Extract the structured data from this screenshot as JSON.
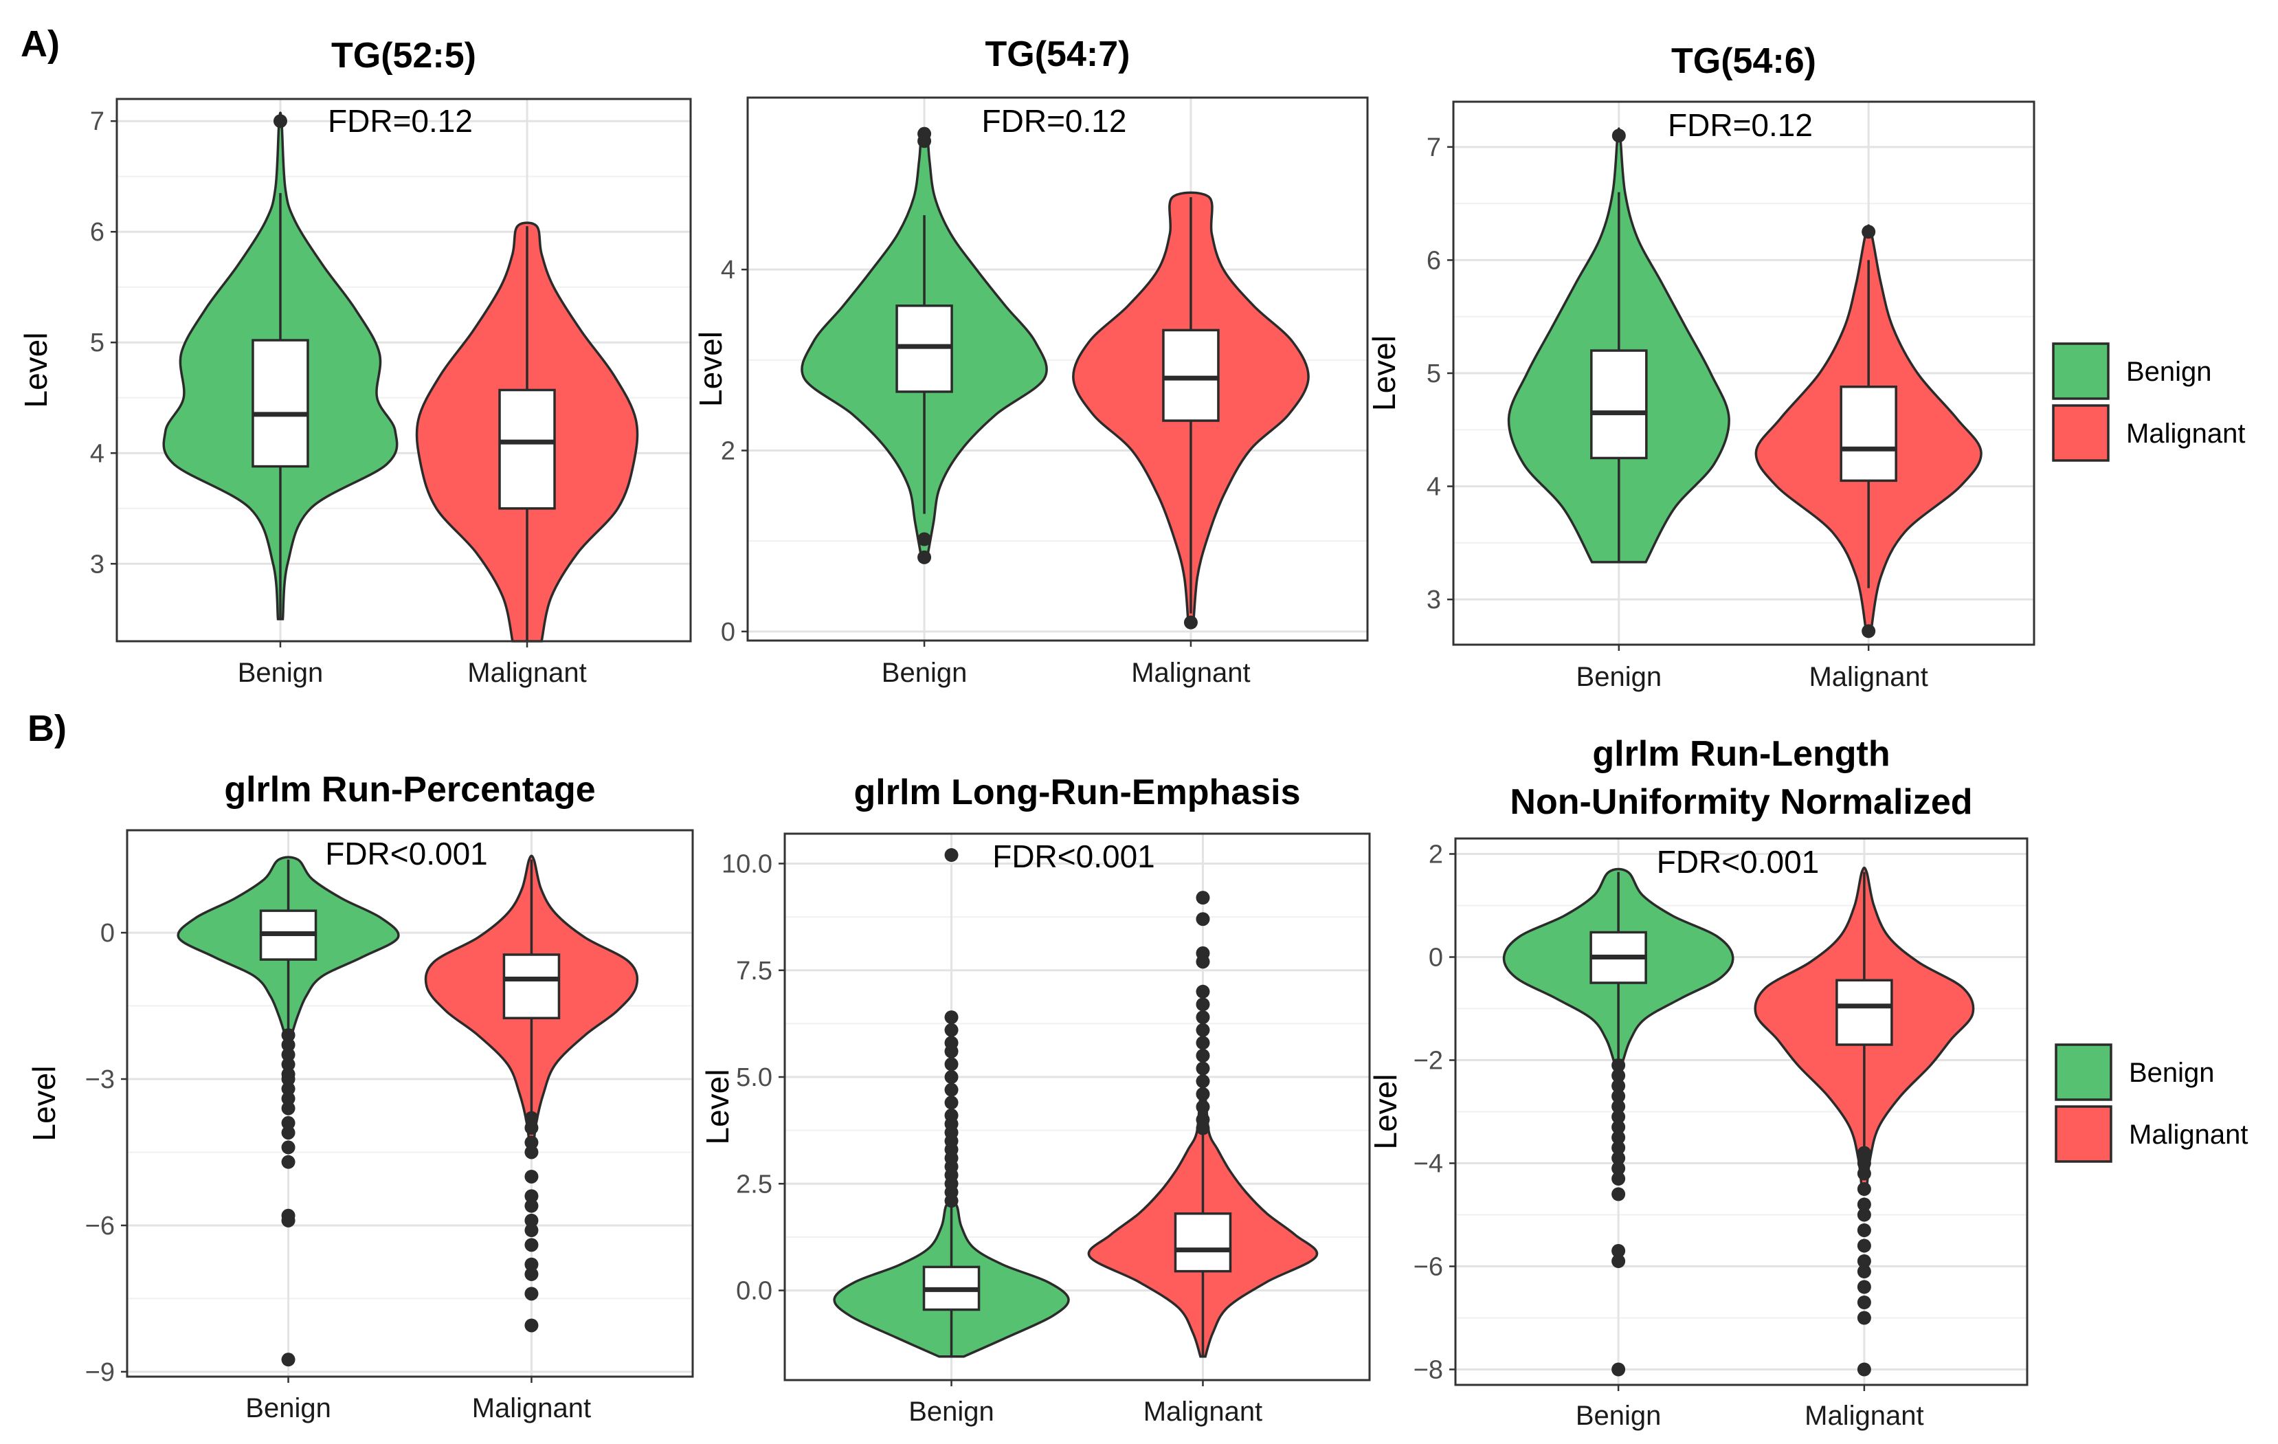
{
  "panel_labels": [
    "A)",
    "B)"
  ],
  "legend": {
    "entries": [
      {
        "label": "Benign",
        "color": "#56C271"
      },
      {
        "label": "Malignant",
        "color": "#FF5C5C"
      }
    ]
  },
  "chart_data": [
    {
      "type": "violin",
      "title": [
        "TG(52:5)"
      ],
      "ylabel": "Level",
      "annotation": "FDR=0.12",
      "ylim": [
        2.3,
        7.2
      ],
      "yticks": [
        3,
        4,
        5,
        6,
        7
      ],
      "ytick_labels": [
        "3",
        "4",
        "5",
        "6",
        "7"
      ],
      "categories": [
        "Benign",
        "Malignant"
      ],
      "series": [
        {
          "name": "Benign",
          "color": "#56C271",
          "min": 2.5,
          "max": 7.0,
          "q1": 3.88,
          "median": 4.35,
          "q3": 5.02,
          "whisker_low": 2.5,
          "whisker_high": 6.35,
          "outliers": [
            7.0
          ],
          "density": [
            [
              2.5,
              0.02
            ],
            [
              3.0,
              0.06
            ],
            [
              3.5,
              0.25
            ],
            [
              3.9,
              0.88
            ],
            [
              4.2,
              0.95
            ],
            [
              4.5,
              0.8
            ],
            [
              4.9,
              0.82
            ],
            [
              5.3,
              0.62
            ],
            [
              5.7,
              0.35
            ],
            [
              6.1,
              0.12
            ],
            [
              6.4,
              0.04
            ],
            [
              7.0,
              0.01
            ]
          ]
        },
        {
          "name": "Malignant",
          "color": "#FF5C5C",
          "min": 2.3,
          "max": 6.05,
          "q1": 3.5,
          "median": 4.1,
          "q3": 4.57,
          "whisker_low": 2.3,
          "whisker_high": 6.05,
          "outliers": [],
          "density": [
            [
              2.3,
              0.12
            ],
            [
              2.7,
              0.2
            ],
            [
              3.1,
              0.42
            ],
            [
              3.5,
              0.75
            ],
            [
              3.9,
              0.88
            ],
            [
              4.3,
              0.9
            ],
            [
              4.7,
              0.72
            ],
            [
              5.1,
              0.45
            ],
            [
              5.5,
              0.22
            ],
            [
              5.8,
              0.12
            ],
            [
              6.05,
              0.08
            ]
          ]
        }
      ]
    },
    {
      "type": "violin",
      "title": [
        "TG(54:7)"
      ],
      "ylabel": "Level",
      "annotation": "FDR=0.12",
      "ylim": [
        -0.1,
        5.9
      ],
      "yticks": [
        0,
        2,
        4
      ],
      "ytick_labels": [
        "0",
        "2",
        "4"
      ],
      "categories": [
        "Benign",
        "Malignant"
      ],
      "series": [
        {
          "name": "Benign",
          "color": "#56C271",
          "min": 0.8,
          "max": 5.5,
          "q1": 2.65,
          "median": 3.15,
          "q3": 3.6,
          "whisker_low": 1.3,
          "whisker_high": 4.6,
          "outliers": [
            0.82,
            1.02,
            5.42,
            5.5
          ],
          "density": [
            [
              0.8,
              0.02
            ],
            [
              1.2,
              0.07
            ],
            [
              1.6,
              0.12
            ],
            [
              2.0,
              0.28
            ],
            [
              2.4,
              0.55
            ],
            [
              2.8,
              0.92
            ],
            [
              3.2,
              0.85
            ],
            [
              3.6,
              0.62
            ],
            [
              4.0,
              0.4
            ],
            [
              4.4,
              0.2
            ],
            [
              4.8,
              0.08
            ],
            [
              5.2,
              0.04
            ],
            [
              5.5,
              0.02
            ]
          ]
        },
        {
          "name": "Malignant",
          "color": "#FF5C5C",
          "min": 0.1,
          "max": 4.8,
          "q1": 2.33,
          "median": 2.8,
          "q3": 3.33,
          "whisker_low": 0.2,
          "whisker_high": 4.8,
          "outliers": [
            0.1
          ],
          "density": [
            [
              0.1,
              0.02
            ],
            [
              0.6,
              0.05
            ],
            [
              1.0,
              0.12
            ],
            [
              1.5,
              0.25
            ],
            [
              2.0,
              0.45
            ],
            [
              2.4,
              0.75
            ],
            [
              2.8,
              0.9
            ],
            [
              3.2,
              0.78
            ],
            [
              3.6,
              0.48
            ],
            [
              4.0,
              0.25
            ],
            [
              4.4,
              0.16
            ],
            [
              4.8,
              0.14
            ]
          ]
        }
      ]
    },
    {
      "type": "violin",
      "title": [
        "TG(54:6)"
      ],
      "ylabel": "Level",
      "annotation": "FDR=0.12",
      "ylim": [
        2.6,
        7.4
      ],
      "yticks": [
        3,
        4,
        5,
        6,
        7
      ],
      "ytick_labels": [
        "3",
        "4",
        "5",
        "6",
        "7"
      ],
      "categories": [
        "Benign",
        "Malignant"
      ],
      "series": [
        {
          "name": "Benign",
          "color": "#56C271",
          "min": 3.33,
          "max": 7.1,
          "q1": 4.25,
          "median": 4.65,
          "q3": 5.2,
          "whisker_low": 3.33,
          "whisker_high": 6.6,
          "outliers": [
            7.1
          ],
          "density": [
            [
              3.33,
              0.22
            ],
            [
              3.8,
              0.45
            ],
            [
              4.2,
              0.78
            ],
            [
              4.6,
              0.9
            ],
            [
              5.0,
              0.75
            ],
            [
              5.4,
              0.55
            ],
            [
              5.8,
              0.35
            ],
            [
              6.2,
              0.15
            ],
            [
              6.6,
              0.05
            ],
            [
              7.1,
              0.01
            ]
          ]
        },
        {
          "name": "Malignant",
          "color": "#FF5C5C",
          "min": 2.72,
          "max": 6.25,
          "q1": 4.05,
          "median": 4.33,
          "q3": 4.88,
          "whisker_low": 3.1,
          "whisker_high": 6.0,
          "outliers": [
            2.72,
            6.25
          ],
          "density": [
            [
              2.72,
              0.02
            ],
            [
              3.2,
              0.1
            ],
            [
              3.6,
              0.3
            ],
            [
              4.0,
              0.75
            ],
            [
              4.3,
              0.92
            ],
            [
              4.6,
              0.72
            ],
            [
              5.0,
              0.4
            ],
            [
              5.4,
              0.2
            ],
            [
              5.8,
              0.1
            ],
            [
              6.25,
              0.02
            ]
          ]
        }
      ]
    },
    {
      "type": "violin",
      "title": [
        "glrlm Run-Percentage"
      ],
      "ylabel": "Level",
      "annotation": "FDR<0.001",
      "ylim": [
        -9.1,
        2.1
      ],
      "yticks": [
        -9,
        -6,
        -3,
        0
      ],
      "ytick_labels": [
        "−9",
        "−6",
        "−3",
        "0"
      ],
      "categories": [
        "Benign",
        "Malignant"
      ],
      "series": [
        {
          "name": "Benign",
          "color": "#56C271",
          "min": -8.75,
          "max": 1.5,
          "q1": -0.55,
          "median": -0.02,
          "q3": 0.45,
          "whisker_low": -2.0,
          "whisker_high": 1.5,
          "outliers": [
            -2.1,
            -2.3,
            -2.5,
            -2.7,
            -2.9,
            -3.0,
            -3.2,
            -3.4,
            -3.6,
            -3.9,
            -4.1,
            -4.4,
            -4.7,
            -5.8,
            -5.9,
            -8.75
          ],
          "density": [
            [
              -2.0,
              0.04
            ],
            [
              -1.7,
              0.08
            ],
            [
              -1.3,
              0.15
            ],
            [
              -0.9,
              0.28
            ],
            [
              -0.5,
              0.62
            ],
            [
              -0.1,
              0.92
            ],
            [
              0.3,
              0.78
            ],
            [
              0.7,
              0.45
            ],
            [
              1.1,
              0.2
            ],
            [
              1.5,
              0.08
            ]
          ]
        },
        {
          "name": "Malignant",
          "color": "#FF5C5C",
          "min": -8.05,
          "max": 1.5,
          "q1": -1.75,
          "median": -0.95,
          "q3": -0.45,
          "whisker_low": -3.7,
          "whisker_high": 1.5,
          "outliers": [
            -3.8,
            -4.0,
            -4.3,
            -4.5,
            -5.0,
            -5.4,
            -5.6,
            -5.9,
            -6.1,
            -6.4,
            -6.8,
            -7.0,
            -7.4,
            -8.05
          ],
          "density": [
            [
              -4.5,
              0.01
            ],
            [
              -3.9,
              0.04
            ],
            [
              -3.3,
              0.1
            ],
            [
              -2.7,
              0.2
            ],
            [
              -2.1,
              0.45
            ],
            [
              -1.6,
              0.72
            ],
            [
              -1.1,
              0.88
            ],
            [
              -0.6,
              0.82
            ],
            [
              -0.1,
              0.45
            ],
            [
              0.4,
              0.2
            ],
            [
              0.9,
              0.08
            ],
            [
              1.5,
              0.02
            ]
          ]
        }
      ]
    },
    {
      "type": "violin",
      "title": [
        "glrlm Long-Run-Emphasis"
      ],
      "ylabel": "Level",
      "annotation": "FDR<0.001",
      "ylim": [
        -2.1,
        10.7
      ],
      "yticks": [
        0,
        2.5,
        5,
        7.5,
        10
      ],
      "ytick_labels": [
        "0.0",
        "2.5",
        "5.0",
        "7.5",
        "10.0"
      ],
      "categories": [
        "Benign",
        "Malignant"
      ],
      "series": [
        {
          "name": "Benign",
          "color": "#56C271",
          "min": -1.55,
          "max": 10.2,
          "q1": -0.45,
          "median": 0.02,
          "q3": 0.55,
          "whisker_low": -1.55,
          "whisker_high": 2.0,
          "outliers": [
            2.1,
            2.3,
            2.5,
            2.7,
            2.9,
            3.1,
            3.3,
            3.5,
            3.7,
            3.9,
            4.1,
            4.4,
            4.7,
            5.0,
            5.3,
            5.6,
            5.8,
            6.1,
            6.4,
            10.2
          ],
          "density": [
            [
              -1.55,
              0.1
            ],
            [
              -1.1,
              0.45
            ],
            [
              -0.6,
              0.82
            ],
            [
              -0.2,
              0.95
            ],
            [
              0.2,
              0.78
            ],
            [
              0.6,
              0.42
            ],
            [
              1.0,
              0.18
            ],
            [
              1.5,
              0.08
            ],
            [
              2.0,
              0.04
            ]
          ]
        },
        {
          "name": "Malignant",
          "color": "#FF5C5C",
          "min": -1.55,
          "max": 9.2,
          "q1": 0.45,
          "median": 0.95,
          "q3": 1.8,
          "whisker_low": -1.55,
          "whisker_high": 3.7,
          "outliers": [
            3.8,
            4.0,
            4.3,
            4.6,
            4.9,
            5.2,
            5.5,
            5.8,
            6.1,
            6.4,
            6.7,
            7.0,
            7.7,
            7.9,
            8.7,
            9.2
          ],
          "density": [
            [
              -1.55,
              0.02
            ],
            [
              -1.0,
              0.08
            ],
            [
              -0.4,
              0.2
            ],
            [
              0.2,
              0.52
            ],
            [
              0.8,
              0.92
            ],
            [
              1.3,
              0.75
            ],
            [
              1.8,
              0.52
            ],
            [
              2.3,
              0.35
            ],
            [
              2.8,
              0.22
            ],
            [
              3.3,
              0.12
            ],
            [
              3.7,
              0.05
            ],
            [
              4.5,
              0.02
            ]
          ]
        }
      ]
    },
    {
      "type": "violin",
      "title": [
        "glrlm Run-Length",
        "Non-Uniformity Normalized"
      ],
      "ylabel": "Level",
      "annotation": "FDR<0.001",
      "ylim": [
        -8.3,
        2.3
      ],
      "yticks": [
        -8,
        -6,
        -4,
        -2,
        0,
        2
      ],
      "ytick_labels": [
        "−8",
        "−6",
        "−4",
        "−2",
        "0",
        "2"
      ],
      "categories": [
        "Benign",
        "Malignant"
      ],
      "series": [
        {
          "name": "Benign",
          "color": "#56C271",
          "min": -8.0,
          "max": 1.65,
          "q1": -0.5,
          "median": 0.0,
          "q3": 0.48,
          "whisker_low": -2.0,
          "whisker_high": 1.65,
          "outliers": [
            -2.1,
            -2.3,
            -2.5,
            -2.7,
            -2.9,
            -3.1,
            -3.3,
            -3.5,
            -3.7,
            -3.9,
            -4.1,
            -4.3,
            -4.6,
            -5.7,
            -5.9,
            -8.0
          ],
          "density": [
            [
              -2.0,
              0.04
            ],
            [
              -1.6,
              0.1
            ],
            [
              -1.2,
              0.22
            ],
            [
              -0.8,
              0.52
            ],
            [
              -0.4,
              0.85
            ],
            [
              0.0,
              0.95
            ],
            [
              0.4,
              0.82
            ],
            [
              0.8,
              0.45
            ],
            [
              1.2,
              0.2
            ],
            [
              1.65,
              0.08
            ]
          ]
        },
        {
          "name": "Malignant",
          "color": "#FF5C5C",
          "min": -8.0,
          "max": 1.65,
          "q1": -1.7,
          "median": -0.95,
          "q3": -0.45,
          "whisker_low": -3.7,
          "whisker_high": 1.65,
          "outliers": [
            -3.8,
            -4.0,
            -4.2,
            -4.5,
            -4.8,
            -5.0,
            -5.3,
            -5.6,
            -5.9,
            -6.1,
            -6.4,
            -6.7,
            -7.0,
            -8.0
          ],
          "density": [
            [
              -4.5,
              0.02
            ],
            [
              -3.9,
              0.05
            ],
            [
              -3.3,
              0.12
            ],
            [
              -2.7,
              0.3
            ],
            [
              -2.1,
              0.55
            ],
            [
              -1.6,
              0.72
            ],
            [
              -1.1,
              0.9
            ],
            [
              -0.6,
              0.82
            ],
            [
              -0.1,
              0.45
            ],
            [
              0.4,
              0.2
            ],
            [
              1.0,
              0.08
            ],
            [
              1.65,
              0.02
            ]
          ]
        }
      ]
    }
  ]
}
